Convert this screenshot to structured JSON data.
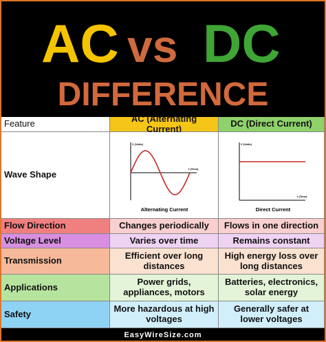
{
  "header": {
    "title_ac": "AC",
    "title_vs": "vs",
    "title_dc": "DC",
    "subtitle": "DIFFERENCE"
  },
  "table": {
    "columns": [
      "Feature",
      "AC (Alternating Current)",
      "DC (Direct Current)"
    ],
    "wave_shape": {
      "label": "Wave Shape",
      "ac": {
        "y_label": "V (Volts)",
        "x_label": "t (Time)",
        "caption": "Alternating Current"
      },
      "dc": {
        "y_label": "V (Volts)",
        "x_label": "t (Time)",
        "caption": "Direct Current"
      }
    },
    "rows": [
      [
        "Flow Direction",
        "Changes periodically",
        "Flows in one direction"
      ],
      [
        "Voltage Level",
        "Varies over time",
        "Remains constant"
      ],
      [
        "Transmission",
        "Efficient over long distances",
        "High energy loss over long distances"
      ],
      [
        "Applications",
        "Power grids, appliances, motors",
        "Batteries, electronics, solar energy"
      ],
      [
        "Safety",
        "More hazardous at high voltages",
        "Generally safer at lower voltages"
      ]
    ]
  },
  "footer": {
    "brand": "EasyWireSize.com"
  }
}
